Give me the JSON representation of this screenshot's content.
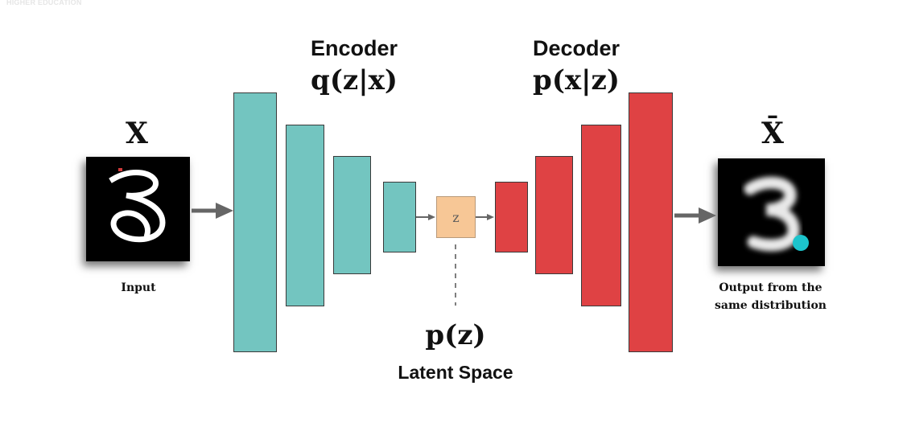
{
  "watermark": "HIGHER EDUCATION",
  "encoder": {
    "title": "Encoder",
    "formula": "q(z|x)",
    "color": "#73c5c0"
  },
  "decoder": {
    "title": "Decoder",
    "formula": "p(x|z)",
    "color": "#df4244"
  },
  "input": {
    "symbol": "X",
    "caption": "Input",
    "digit": "3"
  },
  "output": {
    "symbol": "X̄",
    "caption_line1": "Output from the",
    "caption_line2": "same distribution",
    "digit": "3",
    "dot_color": "#1cc4cc"
  },
  "latent": {
    "node_label": "z",
    "prior": "p(z)",
    "label": "Latent Space",
    "color": "#f7c796"
  }
}
